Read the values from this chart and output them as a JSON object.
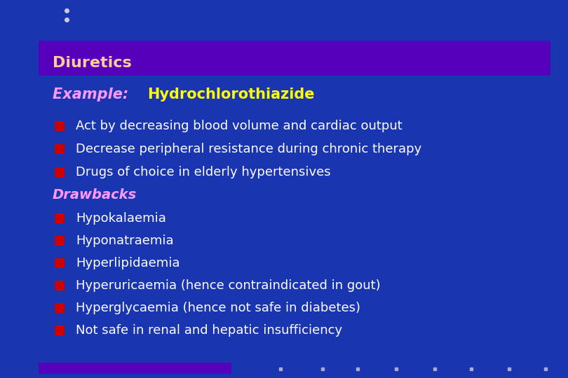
{
  "bg_color": "#1a35b0",
  "title_bar_color": "#5500bb",
  "title_text": "Diuretics",
  "title_color": "#ffcc99",
  "title_fontsize": 16,
  "example_label": "Example: ",
  "example_label_color": "#ff99ff",
  "example_value": "Hydrochlorothiazide",
  "example_value_color": "#ffff00",
  "example_fontsize": 15,
  "bullet_color": "#cc0000",
  "main_bullets": [
    "Act by decreasing blood volume and cardiac output",
    "Decrease peripheral resistance during chronic therapy",
    "Drugs of choice in elderly hypertensives"
  ],
  "main_bullet_color": "#ffffff",
  "main_bullet_fontsize": 13,
  "drawbacks_label": "Drawbacks",
  "drawbacks_color": "#ff99ff",
  "drawbacks_fontsize": 14,
  "sub_bullets": [
    "Hypokalaemia",
    "Hyponatraemia",
    "Hyperlipidaemia",
    "Hyperuricaemia (hence contraindicated in gout)",
    "Hyperglycaemia (hence not safe in diabetes)",
    "Not safe in renal and hepatic insufficiency"
  ],
  "sub_bullet_color": "#ffffff",
  "sub_bullet_fontsize": 13,
  "top_dots_color": "#ccccdd",
  "bottom_bar_color": "#5500bb",
  "bottom_dots_color": "#aaaacc",
  "fig_width": 8.1,
  "fig_height": 5.4,
  "dpi": 100
}
